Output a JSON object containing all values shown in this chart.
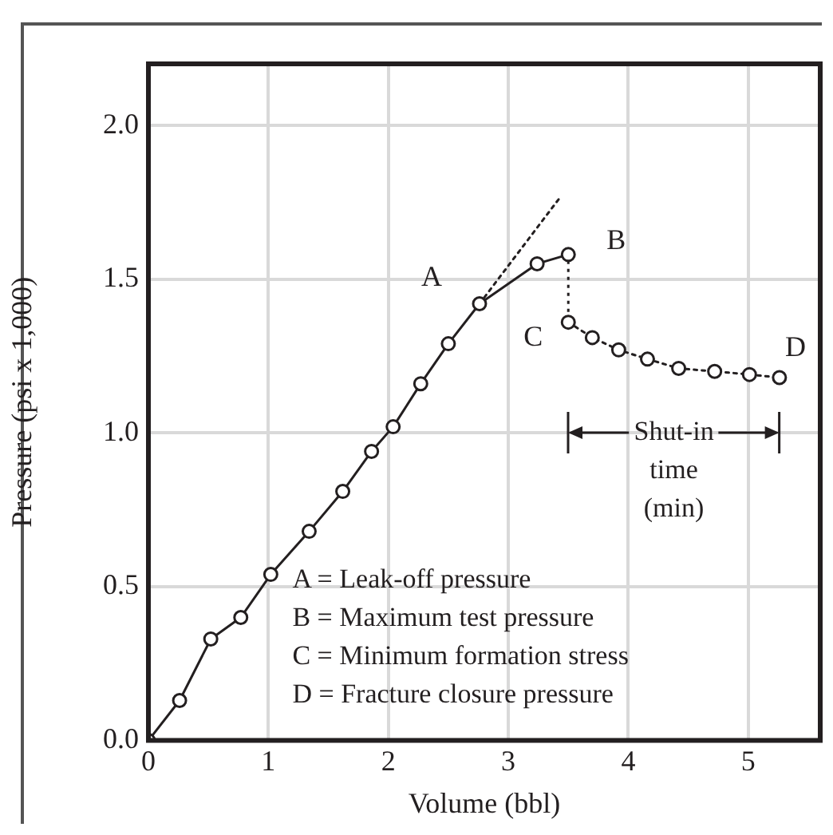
{
  "chart_data": {
    "type": "line",
    "xlabel": "Volume (bbl)",
    "ylabel": "Pressure (psi x 1,000)",
    "xlim": [
      0,
      5.6
    ],
    "xticks": [
      0,
      1,
      2,
      3,
      4,
      5
    ],
    "ylim": [
      0,
      2.2
    ],
    "yticks": [
      {
        "value": 0,
        "label": "0.0"
      },
      {
        "value": 0.5,
        "label": "0.5"
      },
      {
        "value": 1,
        "label": "1.0"
      },
      {
        "value": 1.5,
        "label": "1.5"
      },
      {
        "value": 2,
        "label": "2.0"
      }
    ],
    "grid": true,
    "legend": false,
    "marker": "circle",
    "series": [
      {
        "color": "#231f20",
        "line_style": "solid",
        "x": [
          0,
          0.26,
          0.52,
          0.77,
          1.02,
          1.34,
          1.62,
          1.86,
          2.04,
          2.27,
          2.5,
          2.76,
          3.24,
          3.5
        ],
        "values": [
          0,
          0.13,
          0.33,
          0.4,
          0.54,
          0.68,
          0.81,
          0.94,
          1.02,
          1.16,
          1.29,
          1.42,
          1.55,
          1.58
        ]
      },
      {
        "color": "#231f20",
        "line_style": "dotted",
        "x": [
          3.5,
          3.7,
          3.92,
          4.16,
          4.42,
          4.72,
          5.01,
          5.26
        ],
        "values": [
          1.36,
          1.31,
          1.27,
          1.24,
          1.21,
          1.2,
          1.19,
          1.18
        ]
      },
      {
        "type": "line",
        "color": "#231f20",
        "line_style": "dotted",
        "marker": "none",
        "x": [
          2.76,
          3.42
        ],
        "values": [
          1.42,
          1.76
        ]
      }
    ],
    "annotations": [
      {
        "text": "A",
        "x": 2.76,
        "y": 1.42
      },
      {
        "text": "B",
        "x": 3.5,
        "y": 1.58
      },
      {
        "text": "C",
        "x": 3.5,
        "y": 1.36
      },
      {
        "text": "D",
        "x": 5.26,
        "y": 1.18
      },
      "Shut-in time (min)",
      "A = Leak-off pressure",
      "B = Maximum test pressure",
      "C = Minimum formation stress",
      "D = Fracture closure pressure"
    ]
  }
}
